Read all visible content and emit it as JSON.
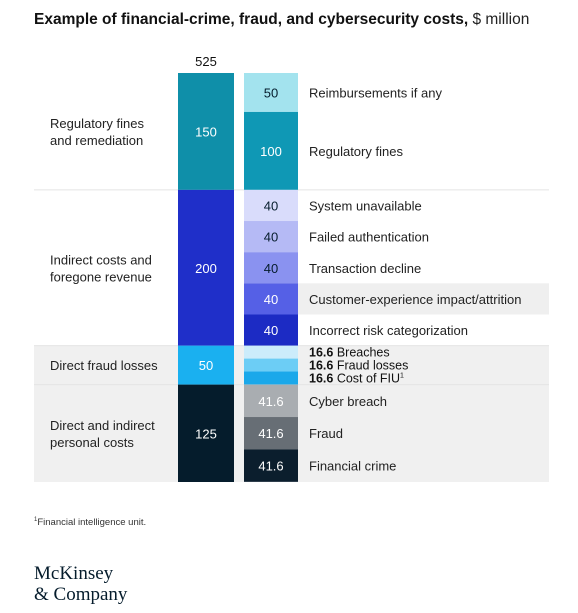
{
  "title": "Example of financial-crime, fraud, and cybersecurity costs,",
  "title_unit": "$ million",
  "footnote_mark": "1",
  "footnote_text": "Financial intelligence unit.",
  "logo": {
    "line1": "McKinsey",
    "line2": "& Company"
  },
  "chart_data": {
    "type": "bar",
    "total": 525,
    "total_label": "525",
    "groups": [
      {
        "name": "Regulatory fines and remediation",
        "label_lines": [
          "Regulatory fines",
          "and remediation"
        ],
        "value": 150,
        "value_label": "150",
        "color": "#0f8fa9",
        "shaded": false,
        "items": [
          {
            "name": "Reimbursements if any",
            "value": 50,
            "value_label": "50",
            "color": "#a3e3ee",
            "text_color": "#051c2c"
          },
          {
            "name": "Regulatory fines",
            "value": 100,
            "value_label": "100",
            "color": "#0f98b5",
            "text_color": "#ffffff"
          }
        ]
      },
      {
        "name": "Indirect costs and foregone revenue",
        "label_lines": [
          "Indirect costs and",
          "foregone revenue"
        ],
        "value": 200,
        "value_label": "200",
        "color": "#1f2fc9",
        "shaded": false,
        "items": [
          {
            "name": "System unavailable",
            "value": 40,
            "value_label": "40",
            "color": "#d9dcfb",
            "text_color": "#051c2c"
          },
          {
            "name": "Failed authentication",
            "value": 40,
            "value_label": "40",
            "color": "#b5baf5",
            "text_color": "#051c2c"
          },
          {
            "name": "Transaction decline",
            "value": 40,
            "value_label": "40",
            "color": "#8a92f0",
            "text_color": "#051c2c"
          },
          {
            "name": "Customer-experience impact/attrition",
            "value": 40,
            "value_label": "40",
            "color": "#5560e6",
            "text_color": "#ffffff",
            "highlight": true
          },
          {
            "name": "Incorrect risk categorization",
            "value": 40,
            "value_label": "40",
            "color": "#1c2bc4",
            "text_color": "#ffffff"
          }
        ]
      },
      {
        "name": "Direct fraud losses",
        "label_lines": [
          "Direct fraud losses"
        ],
        "value": 50,
        "value_label": "50",
        "color": "#1ab0f0",
        "shaded": true,
        "items": [
          {
            "name": "Breaches",
            "value": 16.6,
            "value_label": "16.6",
            "color": "#ccecfb",
            "text_color": "#111111",
            "outside": true
          },
          {
            "name": "Fraud losses",
            "value": 16.6,
            "value_label": "16.6",
            "color": "#6ccdf5",
            "text_color": "#111111",
            "outside": true
          },
          {
            "name": "Cost of FIU",
            "value": 16.6,
            "value_label": "16.6",
            "color": "#1aa8ea",
            "text_color": "#111111",
            "outside": true,
            "sup": "1"
          }
        ]
      },
      {
        "name": "Direct and indirect personal costs",
        "label_lines": [
          "Direct and indirect",
          "personal costs"
        ],
        "value": 125,
        "value_label": "125",
        "color": "#051c2c",
        "shaded": true,
        "items": [
          {
            "name": "Cyber breach",
            "value": 41.6,
            "value_label": "41.6",
            "color": "#a9adb1",
            "text_color": "#ffffff"
          },
          {
            "name": "Fraud",
            "value": 41.6,
            "value_label": "41.6",
            "color": "#676e75",
            "text_color": "#ffffff"
          },
          {
            "name": "Financial crime",
            "value": 41.6,
            "value_label": "41.6",
            "color": "#0b1e2d",
            "text_color": "#ffffff"
          }
        ]
      }
    ]
  }
}
